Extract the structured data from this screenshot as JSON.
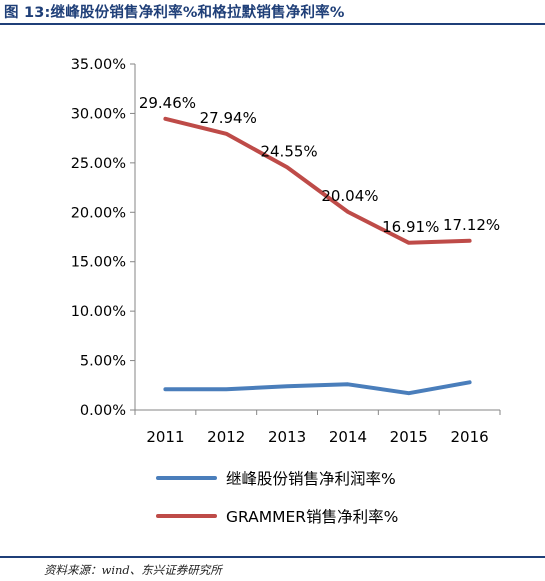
{
  "figure_title": "图 13:继峰股份销售净利率%和格拉默销售净利率%",
  "source_note": "资料来源：wind、东兴证券研究所",
  "chart_data": {
    "type": "line",
    "title": "",
    "xlabel": "",
    "ylabel": "",
    "x": [
      "2011",
      "2012",
      "2013",
      "2014",
      "2015",
      "2016"
    ],
    "ylim": [
      0,
      35
    ],
    "yticks": [
      "0.00%",
      "5.00%",
      "10.00%",
      "15.00%",
      "20.00%",
      "25.00%",
      "30.00%",
      "35.00%"
    ],
    "grid": false,
    "legend_position": "bottom",
    "series": [
      {
        "name": "继峰股份销售净利润率%",
        "color": "#4a7ebb",
        "values": [
          2.1,
          2.1,
          2.4,
          2.6,
          1.7,
          2.8
        ],
        "labels": []
      },
      {
        "name": "GRAMMER销售净利率%",
        "color": "#be4b48",
        "values": [
          29.46,
          27.94,
          24.55,
          20.04,
          16.91,
          17.12
        ],
        "labels": [
          "29.46%",
          "27.94%",
          "24.55%",
          "20.04%",
          "16.91%",
          "17.12%"
        ]
      }
    ]
  }
}
